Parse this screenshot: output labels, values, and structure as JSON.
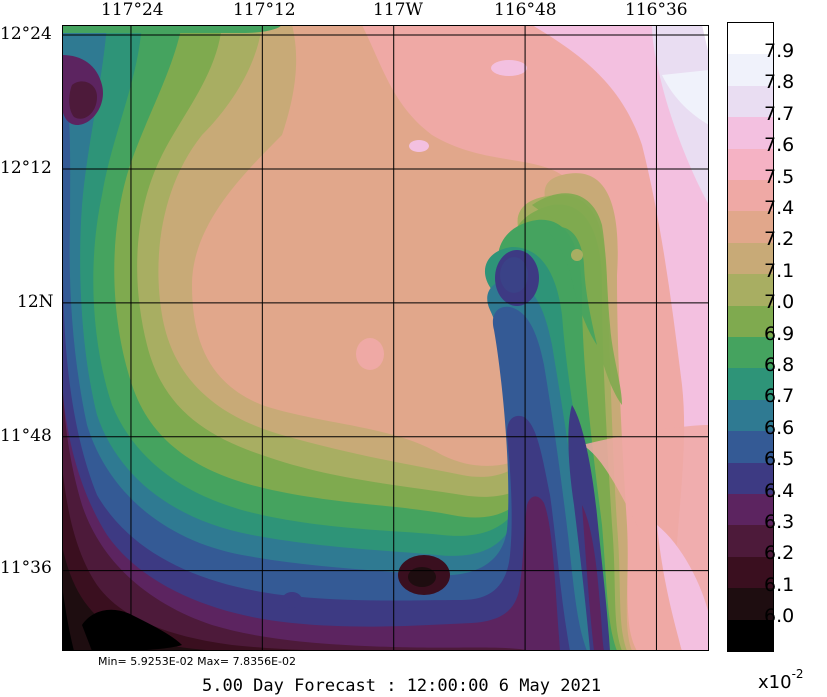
{
  "map": {
    "lon_ticks": [
      {
        "label": "117°24",
        "lon": 117.4
      },
      {
        "label": "117°12",
        "lon": 117.2
      },
      {
        "label": "117W",
        "lon": 117.0
      },
      {
        "label": "116°48",
        "lon": 116.8
      },
      {
        "label": "116°36",
        "lon": 116.6
      }
    ],
    "lat_ticks": [
      {
        "label": "12°24",
        "lat": 12.4
      },
      {
        "label": "12°12",
        "lat": 12.2
      },
      {
        "label": "12N",
        "lat": 12.0
      },
      {
        "label": "11°48",
        "lat": 11.8
      },
      {
        "label": "11°36",
        "lat": 11.6
      }
    ],
    "extent": {
      "lon_min": 117.505,
      "lon_max": 116.52,
      "lat_min": 11.48,
      "lat_max": 12.415
    },
    "minmax_text": "Min= 5.9253E-02  Max= 7.8356E-02",
    "forecast_text": "5.00 Day Forecast : 12:00:00    6 May 2021",
    "field_min": 5.9253,
    "field_max": 7.8356
  },
  "colorbar": {
    "labels": [
      "7.9",
      "7.8",
      "7.7",
      "7.6",
      "7.5",
      "7.4",
      "7.2",
      "7.1",
      "7.0",
      "6.9",
      "6.8",
      "6.7",
      "6.6",
      "6.5",
      "6.4",
      "6.3",
      "6.2",
      "6.1",
      "6.0"
    ],
    "scale_base": "x10",
    "scale_exp": "-2",
    "colors": [
      "#000000",
      "#1e0d10",
      "#3a0f1f",
      "#4d1a3a",
      "#5c2460",
      "#3d3a83",
      "#345a95",
      "#2f7a92",
      "#2e9478",
      "#45a35f",
      "#7faa4f",
      "#a8ae62",
      "#c8aa77",
      "#e1a78b",
      "#efa9a5",
      "#f5b2c4",
      "#f3c0e0",
      "#e9ddf2",
      "#f0f2fb",
      "#ffffff"
    ]
  }
}
